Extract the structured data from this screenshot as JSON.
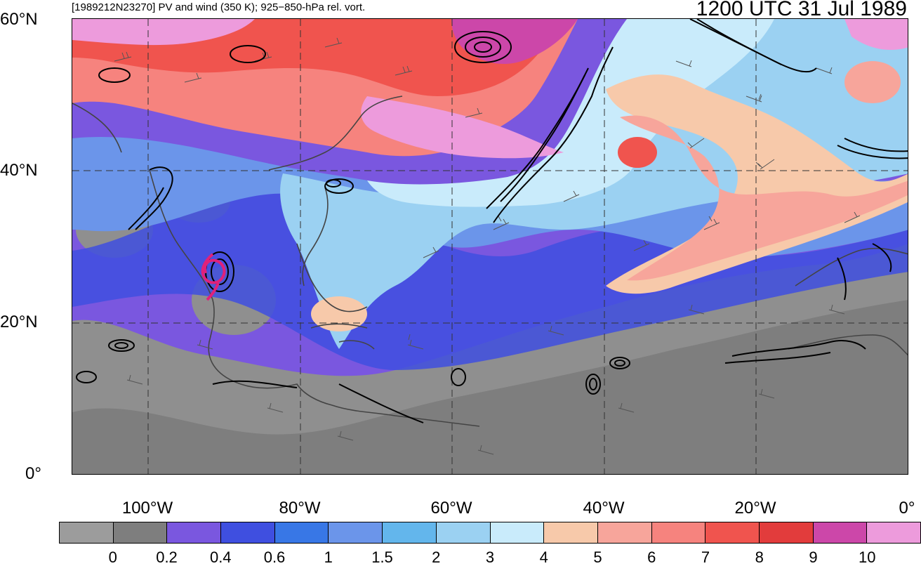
{
  "header": {
    "title": "[1989212N23270] PV and wind (350 K); 925−850-hPa rel. vort.",
    "timestamp": "1200 UTC 31 Jul 1989"
  },
  "map": {
    "latitude_labels": [
      "60°N",
      "40°N",
      "20°N",
      "0°"
    ],
    "longitude_labels": [
      "100°W",
      "80°W",
      "60°W",
      "40°W",
      "20°W",
      "0°"
    ],
    "shading_variable": "PV",
    "contour_color": "#000000",
    "storm_track_color": "#e0217a",
    "coastline_color": "#444444",
    "gridline_style": "dashed"
  },
  "colorbar": {
    "colors": [
      "#9c9c9c",
      "#7e7e7e",
      "#7a57df",
      "#3f4fe0",
      "#3877e6",
      "#6b95ea",
      "#63b6ec",
      "#9bd1f2",
      "#c9ebfb",
      "#f7c9aa",
      "#f7a59b",
      "#f6837e",
      "#f0544e",
      "#e23c3c",
      "#cc47a9",
      "#ed9bdc"
    ],
    "labels": [
      "0",
      "0.2",
      "0.4",
      "0.6",
      "1",
      "1.5",
      "2",
      "3",
      "4",
      "5",
      "6",
      "7",
      "8",
      "9",
      "10"
    ]
  }
}
